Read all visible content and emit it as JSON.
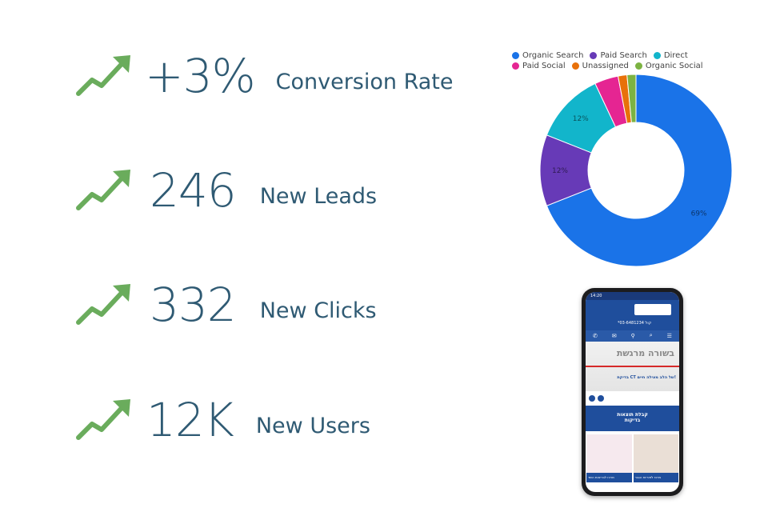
{
  "stats": [
    {
      "value": "+3%",
      "label": "Conversion Rate",
      "trend": "up-trend-icon"
    },
    {
      "value": "246",
      "label": "New Leads",
      "trend": "up-trend-icon"
    },
    {
      "value": "332",
      "label": "New Clicks",
      "trend": "up-trend-icon"
    },
    {
      "value": "12K",
      "label": "New Users",
      "trend": "up-trend-icon"
    }
  ],
  "colors": {
    "stat_text": "#2f5a73",
    "trend_icon": "#6aac5c"
  },
  "chart_data": {
    "type": "pie",
    "donut": true,
    "title": "",
    "legend_position": "top",
    "slices": [
      {
        "name": "Organic Search",
        "value": 69,
        "color": "#1a73e8",
        "label": "69%"
      },
      {
        "name": "Paid Search",
        "value": 12,
        "color": "#673ab7",
        "label": "12%"
      },
      {
        "name": "Direct",
        "value": 12,
        "color": "#12b5cb",
        "label": "12%"
      },
      {
        "name": "Paid Social",
        "value": 4,
        "color": "#e52592",
        "label": ""
      },
      {
        "name": "Unassigned",
        "value": 1.5,
        "color": "#e8710a",
        "label": ""
      },
      {
        "name": "Organic Social",
        "value": 1.5,
        "color": "#7cb342",
        "label": ""
      }
    ]
  },
  "phone": {
    "status_time": "14:20",
    "site_phone": "*קול 03-6481234",
    "nav_icons": [
      "phone-icon",
      "mail-icon",
      "location-icon",
      "search-icon",
      "menu-icon"
    ],
    "hero_title": "בשורה מרגשת",
    "hero_subtitle": "בדיקת CT של הלב מצילה חיים!",
    "cta_label_1": "קבלת תוצאות",
    "cta_label_2": "בדיקות",
    "card_left": "מרכז לבריאות השד",
    "card_right": "מרכז לפוריות הגבר"
  }
}
